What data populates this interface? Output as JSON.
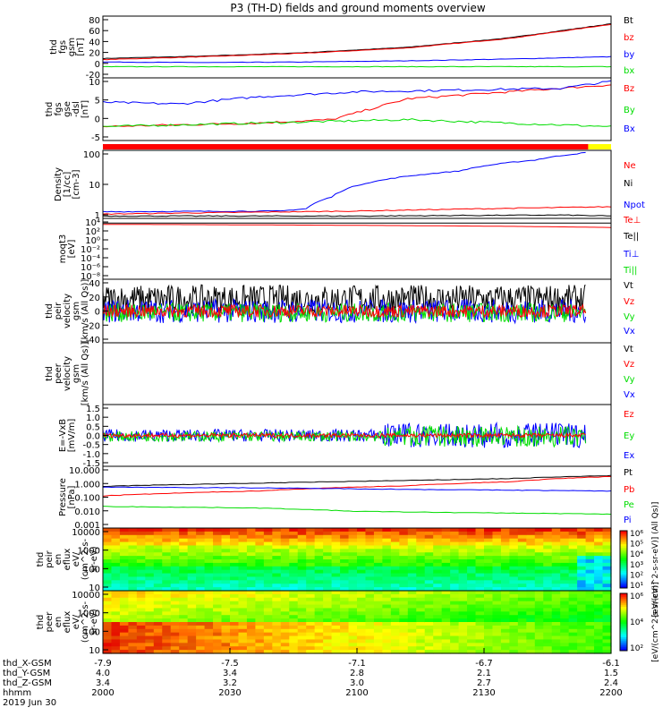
{
  "title": "P3 (TH-D) fields and ground moments overview",
  "colors": {
    "black": "#000000",
    "red": "#ff0000",
    "green": "#00dd00",
    "blue": "#0000ff",
    "bar_red": "#ff0000",
    "bar_yellow": "#ffff00"
  },
  "time_axis": {
    "ticks": [
      "2000",
      "2030",
      "2100",
      "2130",
      "2200"
    ],
    "rows": [
      {
        "label": "thd_X-GSM",
        "values": [
          "-7.9",
          "-7.5",
          "-7.1",
          "-6.7",
          "-6.1"
        ]
      },
      {
        "label": "thd_Y-GSM",
        "values": [
          "4.0",
          "3.4",
          "2.8",
          "2.1",
          "1.5"
        ]
      },
      {
        "label": "thd_Z-GSM",
        "values": [
          "3.4",
          "3.2",
          "3.0",
          "2.7",
          "2.4"
        ]
      },
      {
        "label": "hhmm",
        "values": [
          "2000",
          "2030",
          "2100",
          "2130",
          "2200"
        ]
      }
    ],
    "date": "2019 Jun 30"
  },
  "chart_data": [
    {
      "type": "line",
      "name": "fgs_gsm",
      "ylabel": [
        "thd",
        "fgs",
        "gsm",
        "[nT]"
      ],
      "yticks": [
        "80",
        "60",
        "40",
        "20",
        "0",
        "-20"
      ],
      "ylim": [
        -20,
        85
      ],
      "legend": [
        "Bt",
        "bz",
        "by",
        "bx"
      ],
      "series": [
        {
          "name": "Bt",
          "color": "black",
          "x": [
            0,
            0.2,
            0.4,
            0.6,
            0.8,
            1.0
          ],
          "y": [
            13,
            17,
            23,
            32,
            48,
            72
          ]
        },
        {
          "name": "bz",
          "color": "red",
          "x": [
            0,
            0.2,
            0.4,
            0.6,
            0.8,
            1.0
          ],
          "y": [
            11,
            16,
            22,
            31,
            47,
            71
          ]
        },
        {
          "name": "by",
          "color": "blue",
          "x": [
            0,
            0.2,
            0.4,
            0.6,
            0.8,
            1.0
          ],
          "y": [
            7,
            6,
            7,
            9,
            12,
            16
          ]
        },
        {
          "name": "bx",
          "color": "green",
          "x": [
            0,
            0.5,
            1.0
          ],
          "y": [
            -1,
            -1,
            -1
          ]
        }
      ]
    },
    {
      "type": "line",
      "name": "fgs_dsl",
      "ylabel": [
        "thd",
        "fgs",
        "gse",
        "-dsl",
        "[nT]"
      ],
      "yticks": [
        "10",
        "5",
        "0",
        "-5"
      ],
      "ylim": [
        -7,
        11
      ],
      "legend": [
        "Bz",
        "By",
        "Bx"
      ],
      "series": [
        {
          "name": "Bz",
          "color": "red",
          "x": [
            0,
            0.3,
            0.45,
            0.6,
            0.8,
            1.0
          ],
          "y": [
            -3,
            -2,
            -1,
            5,
            7,
            9
          ]
        },
        {
          "name": "By",
          "color": "green",
          "x": [
            0,
            0.3,
            0.6,
            0.8,
            1.0
          ],
          "y": [
            -3,
            -2,
            -1,
            -2,
            -3
          ]
        },
        {
          "name": "Bx",
          "color": "blue",
          "x": [
            0,
            0.15,
            0.3,
            0.5,
            0.7,
            0.9,
            1.0
          ],
          "y": [
            4,
            3.5,
            5.5,
            7,
            7.5,
            8,
            10
          ]
        }
      ]
    },
    {
      "type": "bar",
      "name": "mode_bar",
      "segments": [
        {
          "from": 0,
          "to": 0.955,
          "color": "bar_red"
        },
        {
          "from": 0.955,
          "to": 1.0,
          "color": "bar_yellow"
        }
      ]
    },
    {
      "type": "line",
      "name": "density",
      "ylabel": [
        "Density",
        "[1/cc]",
        "[cm-3]"
      ],
      "yticks": [
        "100",
        "10",
        "1"
      ],
      "log": true,
      "legend": [
        "Ne",
        "Ni",
        "Npot"
      ],
      "series": [
        {
          "name": "Npot",
          "color": "blue",
          "x": [
            0,
            0.35,
            0.4,
            0.45,
            0.55,
            0.7,
            0.85,
            0.95
          ],
          "y": [
            0.75,
            0.8,
            1.0,
            3,
            15,
            35,
            100,
            200
          ]
        },
        {
          "name": "Ne",
          "color": "red",
          "x": [
            0,
            0.5,
            1.0
          ],
          "y": [
            0.6,
            0.8,
            1.2
          ]
        },
        {
          "name": "Ni",
          "color": "black",
          "x": [
            0,
            0.5,
            0.9,
            1.0
          ],
          "y": [
            0.5,
            0.5,
            0.55,
            0.5
          ]
        }
      ]
    },
    {
      "type": "line",
      "name": "moqt3",
      "ylabel": [
        "moqt3",
        "[eV]"
      ],
      "yticks": [
        "10⁴",
        "10²",
        "10⁰",
        "10⁻²",
        "10⁻⁴",
        "10⁻⁶",
        "10⁻⁸"
      ],
      "legend": [
        "Te⊥",
        "Te||",
        "Ti⊥",
        "Ti||"
      ],
      "series": [
        {
          "name": "Te||",
          "color": "black",
          "x": [
            0,
            1
          ],
          "y": [
            3000,
            3000
          ]
        },
        {
          "name": "Te⊥",
          "color": "red",
          "x": [
            0,
            1
          ],
          "y": [
            1500,
            300
          ]
        }
      ]
    },
    {
      "type": "line",
      "name": "peir_velocity",
      "ylabel": [
        "thd",
        "peir",
        "velocity",
        "gsm",
        "[km/s (All Qs)]"
      ],
      "yticks": [
        "40",
        "20",
        "0",
        "-20",
        "-40"
      ],
      "ylim": [
        -40,
        40
      ],
      "legend": [
        "Vt",
        "Vz",
        "Vy",
        "Vx"
      ],
      "series": [
        {
          "name": "Vt",
          "color": "black",
          "mean": 15,
          "noise": 18
        },
        {
          "name": "Vx",
          "color": "blue",
          "mean": 0,
          "noise": 15
        },
        {
          "name": "Vy",
          "color": "green",
          "mean": -2,
          "noise": 12
        },
        {
          "name": "Vz",
          "color": "red",
          "mean": 0,
          "noise": 8
        }
      ]
    },
    {
      "type": "line",
      "name": "peer_velocity",
      "ylabel": [
        "thd",
        "peer",
        "velocity",
        "gsm",
        "[km/s (All Qs)]"
      ],
      "yticks": [],
      "legend": [
        "Vt",
        "Vz",
        "Vy",
        "Vx"
      ],
      "series": []
    },
    {
      "type": "line",
      "name": "efield",
      "ylabel": [
        "E=-VxB",
        "[mV/m]"
      ],
      "yticks": [
        "1.5",
        "1.0",
        "0.5",
        "0.0",
        "-0.5",
        "-1.0",
        "-1.5"
      ],
      "ylim": [
        -1.5,
        1.5
      ],
      "legend": [
        "Ez",
        "Ey",
        "Ex"
      ],
      "series": [
        {
          "name": "Ex",
          "color": "blue",
          "mean": 0,
          "noise": 0.3
        },
        {
          "name": "Ey",
          "color": "green",
          "mean": -0.05,
          "noise": 0.25
        },
        {
          "name": "Ez",
          "color": "red",
          "mean": 0,
          "noise": 0.1
        }
      ]
    },
    {
      "type": "line",
      "name": "pressure",
      "ylabel": [
        "Pressure",
        "[nPa]"
      ],
      "yticks": [
        "10.000",
        "1.000",
        "0.100",
        "0.010",
        "0.001"
      ],
      "log": true,
      "legend": [
        "Pt",
        "Pb",
        "Pe",
        "Pi"
      ],
      "series": [
        {
          "name": "Pt",
          "color": "black",
          "x": [
            0,
            0.3,
            0.6,
            0.8,
            1.0
          ],
          "y": [
            0.5,
            0.8,
            1.2,
            1.6,
            2.5
          ]
        },
        {
          "name": "Pb",
          "color": "red",
          "x": [
            0,
            0.3,
            0.6,
            0.8,
            1.0
          ],
          "y": [
            0.12,
            0.25,
            0.55,
            1.0,
            2.2
          ]
        },
        {
          "name": "Pi",
          "color": "blue",
          "x": [
            0,
            0.3,
            0.6,
            1.0
          ],
          "y": [
            0.45,
            0.4,
            0.32,
            0.25
          ]
        },
        {
          "name": "Pe",
          "color": "green",
          "x": [
            0,
            0.3,
            0.5,
            0.7,
            1.0
          ],
          "y": [
            0.025,
            0.02,
            0.012,
            0.01,
            0.008
          ]
        }
      ]
    },
    {
      "type": "heatmap",
      "name": "peir_eflux",
      "ylabel": [
        "thd",
        "peir",
        "en",
        "eflux",
        "eV/",
        "(cm^2-s-",
        "sr-eV)"
      ],
      "yticks": [
        "10000",
        "1000",
        "100",
        "10"
      ],
      "log": true
    },
    {
      "type": "heatmap",
      "name": "peer_eflux",
      "ylabel": [
        "thd",
        "peer",
        "en",
        "eflux",
        "eV/",
        "(cm^2-s-",
        "sr-eV)"
      ],
      "yticks": [
        "10000",
        "1000",
        "100",
        "10"
      ],
      "log": true
    }
  ],
  "colorbars": [
    {
      "ticks": [
        "10⁶",
        "10⁵",
        "10⁴",
        "10³",
        "10²",
        "10¹"
      ],
      "label": "[eV/(cm^2-s-sr-eV)] (All Qs)]"
    },
    {
      "ticks": [
        "10⁶",
        "10⁴",
        "10²"
      ],
      "label": "[eV/(cm^2-s-sr-eV)]"
    }
  ]
}
